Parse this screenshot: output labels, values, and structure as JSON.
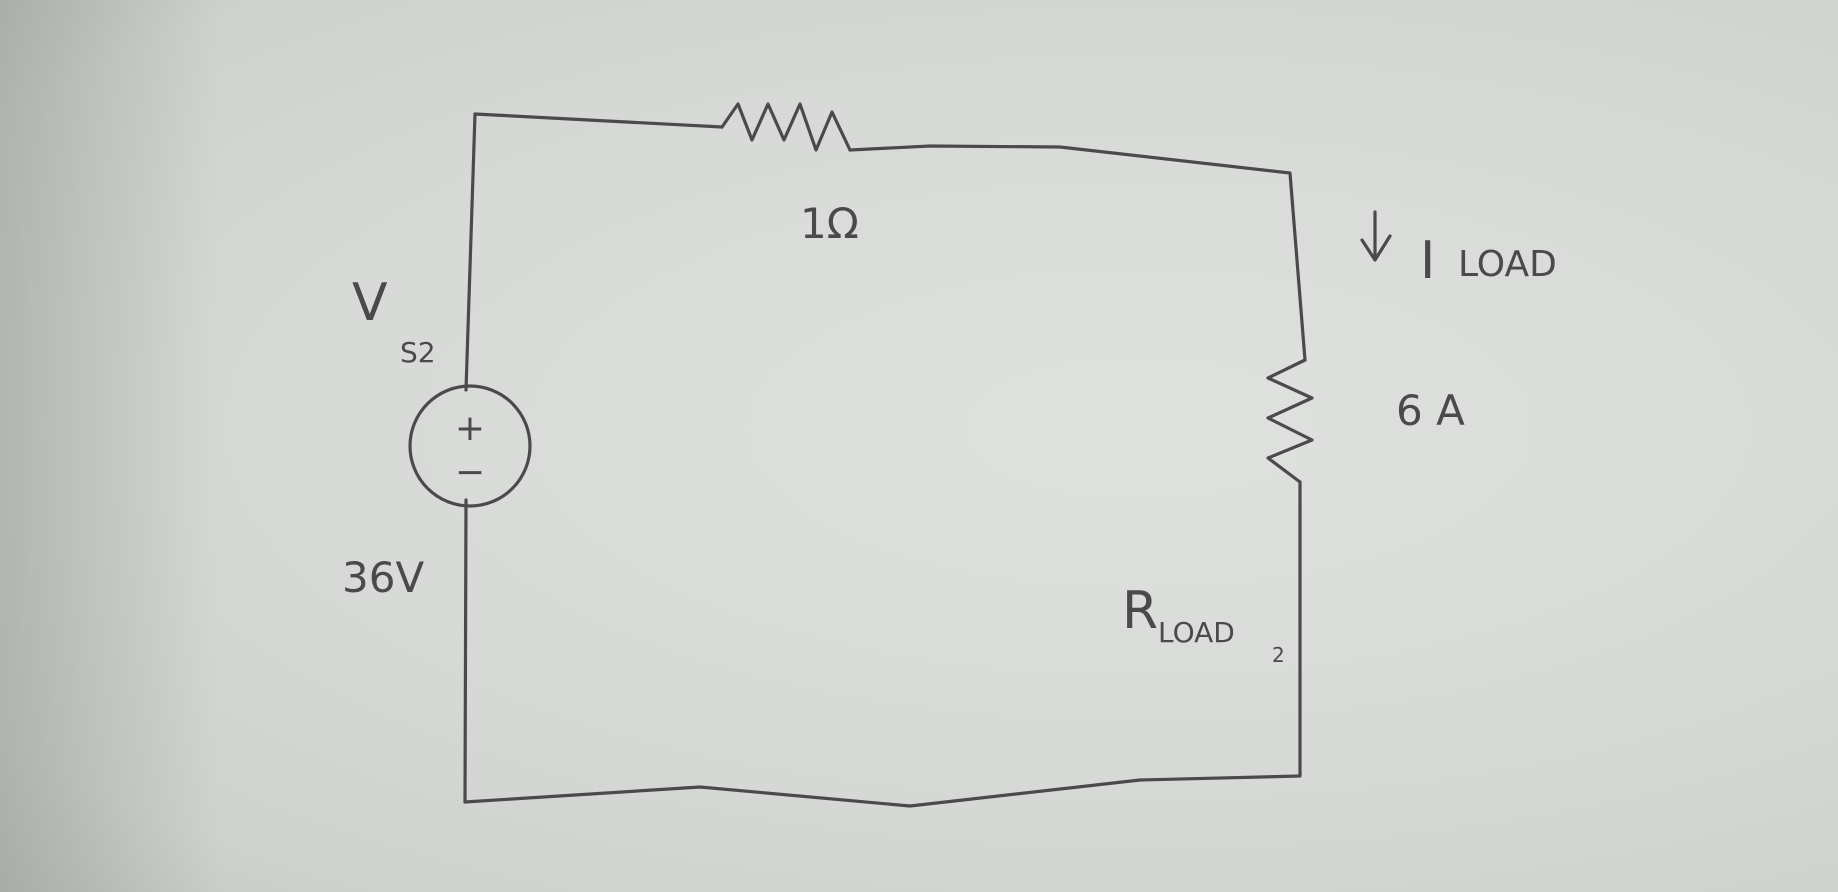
{
  "diagram": {
    "source": {
      "label_main": "V",
      "label_sub": "S2",
      "polarity_plus": "+",
      "polarity_minus": "−",
      "value": "36V"
    },
    "series_resistor": {
      "value": "1Ω"
    },
    "current": {
      "label_main": "I",
      "label_sub": "LOAD",
      "value": "6 A"
    },
    "load_resistor": {
      "label_main": "R",
      "label_sub": "LOAD",
      "label_index": "2"
    }
  }
}
